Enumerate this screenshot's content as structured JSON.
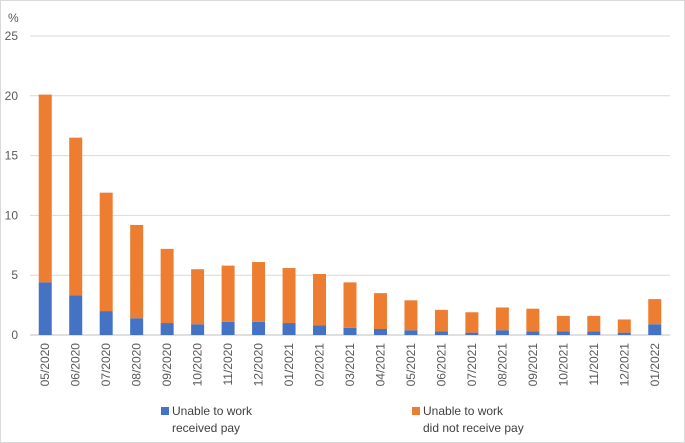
{
  "chart_data": {
    "type": "bar",
    "stacked": true,
    "y_unit_label": "%",
    "ylim": [
      0,
      25
    ],
    "yticks": [
      0,
      5,
      10,
      15,
      20,
      25
    ],
    "grid": true,
    "legend_position": "bottom",
    "categories": [
      "05/2020",
      "06/2020",
      "07/2020",
      "08/2020",
      "09/2020",
      "10/2020",
      "11/2020",
      "12/2020",
      "01/2021",
      "02/2021",
      "03/2021",
      "04/2021",
      "05/2021",
      "06/2021",
      "07/2021",
      "08/2021",
      "09/2021",
      "10/2021",
      "11/2021",
      "12/2021",
      "01/2022"
    ],
    "series": [
      {
        "name": "Unable to work received pay",
        "legend_lines": [
          "Unable to work",
          "received pay"
        ],
        "color": "#4472c4",
        "values": [
          4.4,
          3.3,
          2.0,
          1.4,
          1.0,
          0.9,
          1.1,
          1.1,
          1.0,
          0.8,
          0.6,
          0.5,
          0.4,
          0.3,
          0.2,
          0.4,
          0.3,
          0.3,
          0.3,
          0.2,
          0.9
        ]
      },
      {
        "name": "Unable to work did not receive pay",
        "legend_lines": [
          "Unable to work",
          "did not receive pay"
        ],
        "color": "#ed7d31",
        "values": [
          15.7,
          13.2,
          9.9,
          7.8,
          6.2,
          4.6,
          4.7,
          5.0,
          4.6,
          4.3,
          3.8,
          3.0,
          2.5,
          1.8,
          1.7,
          1.9,
          1.9,
          1.3,
          1.3,
          1.1,
          2.1
        ]
      }
    ]
  }
}
